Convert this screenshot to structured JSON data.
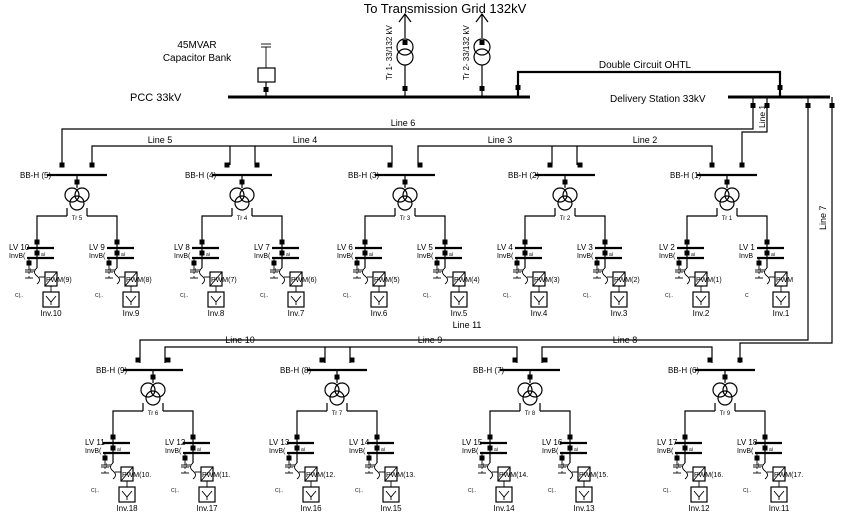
{
  "title": "To Transmission Grid 132kV",
  "capacitor": {
    "line1": "45MVAR",
    "line2": "Capacitor Bank"
  },
  "pcc_label": "PCC 33kV",
  "delivery_label": "Delivery Station 33kV",
  "ohtl_label": "Double Circuit OHTL",
  "transformers_main": [
    "Tr 1- 33/132 kV",
    "Tr 2- 33/132 kV"
  ],
  "lines": {
    "l1": "Line 1",
    "l2": "Line 2",
    "l3": "Line 3",
    "l4": "Line 4",
    "l5": "Line 5",
    "l6": "Line 6",
    "l7": "Line 7",
    "l8": "Line 8",
    "l9": "Line 9",
    "l10": "Line 10",
    "l11": "Line 11"
  },
  "top_units": [
    {
      "bb": "BB-H (5)",
      "tr": "Tr 5",
      "lvL": "LV 10",
      "lvR": "LV 9",
      "pwmL": "PWM(9)",
      "pwmR": "PWM(8)",
      "invL": "Inv.10",
      "invR": "Inv.9"
    },
    {
      "bb": "BB-H (4)",
      "tr": "Tr 4",
      "lvL": "LV 8",
      "lvR": "LV 7",
      "pwmL": "PWM(7)",
      "pwmR": "PWM(6)",
      "invL": "Inv.8",
      "invR": "Inv.7"
    },
    {
      "bb": "BB-H (3)",
      "tr": "Tr 3",
      "lvL": "LV 6",
      "lvR": "LV 5",
      "pwmL": "PWM(5)",
      "pwmR": "PWM(4)",
      "invL": "Inv.6",
      "invR": "Inv.5"
    },
    {
      "bb": "BB-H (2)",
      "tr": "Tr 2",
      "lvL": "LV 4",
      "lvR": "LV 3",
      "pwmL": "PWM(3)",
      "pwmR": "PWM(2)",
      "invL": "Inv.4",
      "invR": "Inv.3"
    },
    {
      "bb": "BB-H (1)",
      "tr": "Tr 1",
      "lvL": "LV 2",
      "lvR": "LV 1",
      "pwmL": "PWM(1)",
      "pwmR": "PWM",
      "invL": "Inv.2",
      "invR": "Inv.1"
    }
  ],
  "bottom_units": [
    {
      "bb": "BB-H (9)",
      "tr": "Tr 6",
      "lvL": "LV 11",
      "lvR": "LV 12",
      "pwmL": "PWM(10.",
      "pwmR": "PWM(11.",
      "invL": "Inv.18",
      "invR": "Inv.17"
    },
    {
      "bb": "BB-H (8)",
      "tr": "Tr 7",
      "lvL": "LV 13",
      "lvR": "LV 14",
      "pwmL": "PWM(12.",
      "pwmR": "PWM(13.",
      "invL": "Inv.16",
      "invR": "Inv.15"
    },
    {
      "bb": "BB-H (7)",
      "tr": "Tr 8",
      "lvL": "LV 15",
      "lvR": "LV 16",
      "pwmL": "PWM(14.",
      "pwmR": "PWM(15.",
      "invL": "Inv.14",
      "invR": "Inv.13"
    },
    {
      "bb": "BB-H (6)",
      "tr": "Tr 9",
      "lvL": "LV 17",
      "lvR": "LV 18",
      "pwmL": "PWM(16.",
      "pwmR": "PWM(17.",
      "invL": "Inv.12",
      "invR": "Inv.11"
    }
  ],
  "inv_bus_label": "InvB(",
  "inv_bus_label_short": "InvB",
  "small_ac": "ai",
  "small_lc": "Lc",
  "cap_label": "C(..",
  "cap_label_short": "C"
}
